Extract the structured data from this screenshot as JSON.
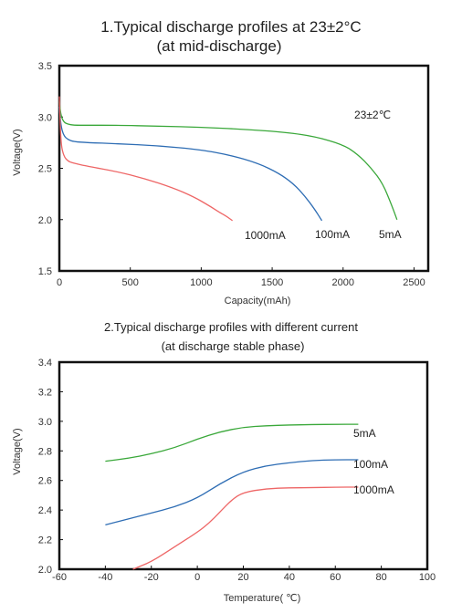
{
  "chart_data": [
    {
      "type": "line",
      "title": "1.Typical discharge profiles at 23±2°C",
      "subtitle": "(at mid-discharge)",
      "xlabel": "Capacity(mAh)",
      "ylabel": "Voltage(V)",
      "xlim": [
        0,
        2600
      ],
      "ylim": [
        1.5,
        3.5
      ],
      "xticks": [
        0,
        500,
        1000,
        1500,
        2000,
        2500
      ],
      "yticks": [
        1.5,
        2.0,
        2.5,
        3.0,
        3.5
      ],
      "xtick_labels": [
        "0",
        "500",
        "1000",
        "1500",
        "2000",
        "2500"
      ],
      "ytick_labels": [
        "1.5",
        "2.0",
        "2.5",
        "3.0",
        "3.5"
      ],
      "annotation": "23±2℃",
      "grid": false,
      "series": [
        {
          "name": "5mA",
          "color": "#3aa83a",
          "x": [
            0,
            10,
            30,
            60,
            100,
            200,
            400,
            700,
            1000,
            1300,
            1600,
            1800,
            2000,
            2100,
            2200,
            2280,
            2340,
            2380
          ],
          "y": [
            3.15,
            3.02,
            2.95,
            2.93,
            2.92,
            2.92,
            2.92,
            2.91,
            2.9,
            2.88,
            2.85,
            2.81,
            2.73,
            2.64,
            2.5,
            2.35,
            2.15,
            2.0
          ]
        },
        {
          "name": "100mA",
          "color": "#2e6db4",
          "x": [
            0,
            10,
            30,
            60,
            100,
            200,
            400,
            700,
            1000,
            1200,
            1400,
            1550,
            1650,
            1730,
            1800,
            1850
          ],
          "y": [
            3.1,
            2.92,
            2.82,
            2.78,
            2.76,
            2.75,
            2.74,
            2.72,
            2.68,
            2.63,
            2.55,
            2.45,
            2.35,
            2.23,
            2.1,
            1.99
          ]
        },
        {
          "name": "1000mA",
          "color": "#ee6666",
          "x": [
            0,
            10,
            30,
            60,
            100,
            200,
            400,
            600,
            800,
            950,
            1050,
            1130,
            1180,
            1220
          ],
          "y": [
            3.2,
            2.75,
            2.62,
            2.57,
            2.55,
            2.52,
            2.47,
            2.4,
            2.31,
            2.22,
            2.14,
            2.07,
            2.03,
            1.99
          ]
        }
      ]
    },
    {
      "type": "line",
      "title": "2.Typical discharge profiles with different current",
      "subtitle": "(at discharge stable phase)",
      "xlabel": "Temperature( ℃)",
      "ylabel": "Voltage(V)",
      "xlim": [
        -60,
        100
      ],
      "ylim": [
        2.0,
        3.4
      ],
      "xticks": [
        -60,
        -40,
        -20,
        0,
        20,
        40,
        60,
        80,
        100
      ],
      "yticks": [
        2.0,
        2.2,
        2.4,
        2.6,
        2.8,
        3.0,
        3.2,
        3.4
      ],
      "xtick_labels": [
        "-60",
        "-40",
        "-20",
        "0",
        "20",
        "40",
        "60",
        "80",
        "100"
      ],
      "ytick_labels": [
        "2.0",
        "2.2",
        "2.4",
        "2.6",
        "2.8",
        "3.0",
        "3.2",
        "3.4"
      ],
      "grid": false,
      "series": [
        {
          "name": "5mA",
          "color": "#3aa83a",
          "x": [
            -40,
            -30,
            -20,
            -10,
            0,
            10,
            20,
            30,
            40,
            50,
            60,
            70
          ],
          "y": [
            2.73,
            2.75,
            2.78,
            2.82,
            2.88,
            2.93,
            2.96,
            2.97,
            2.975,
            2.978,
            2.98,
            2.98
          ]
        },
        {
          "name": "100mA",
          "color": "#2e6db4",
          "x": [
            -40,
            -30,
            -20,
            -10,
            0,
            10,
            20,
            30,
            40,
            50,
            60,
            70
          ],
          "y": [
            2.3,
            2.34,
            2.38,
            2.42,
            2.48,
            2.58,
            2.66,
            2.7,
            2.72,
            2.735,
            2.74,
            2.74
          ]
        },
        {
          "name": "1000mA",
          "color": "#ee6666",
          "x": [
            -28,
            -20,
            -10,
            0,
            5,
            10,
            15,
            20,
            30,
            40,
            50,
            60,
            70
          ],
          "y": [
            2.0,
            2.05,
            2.15,
            2.25,
            2.31,
            2.39,
            2.47,
            2.52,
            2.545,
            2.55,
            2.552,
            2.555,
            2.555
          ]
        }
      ]
    }
  ]
}
